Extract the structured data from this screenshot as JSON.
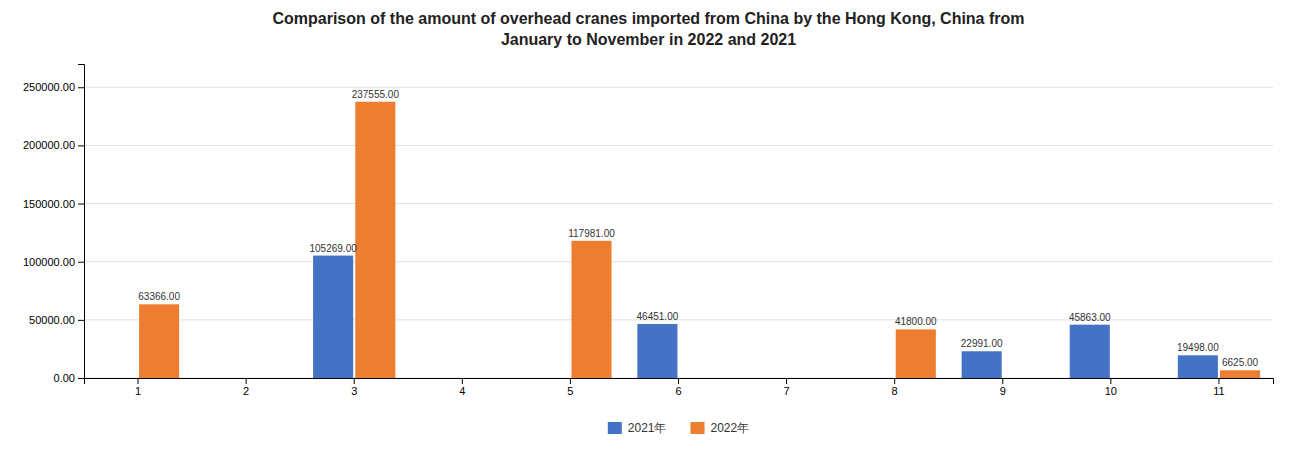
{
  "chart_data": {
    "type": "bar",
    "title": "Comparison of the amount of overhead cranes imported from China by the Hong Kong, China from\nJanuary to November in 2022 and 2021",
    "categories": [
      "1",
      "2",
      "3",
      "4",
      "5",
      "6",
      "7",
      "8",
      "9",
      "10",
      "11"
    ],
    "series": [
      {
        "name": "2021年",
        "color": "#4472C4",
        "values": [
          0,
          0,
          105269,
          0,
          0,
          46451,
          0,
          0,
          22991,
          45863,
          19498
        ],
        "value_labels": [
          null,
          null,
          "105269.00",
          null,
          null,
          "46451.00",
          null,
          null,
          "22991.00",
          "45863.00",
          "19498.00"
        ]
      },
      {
        "name": "2022年",
        "color": "#ED7D31",
        "values": [
          63366,
          0,
          237555,
          0,
          117981,
          0,
          0,
          41800,
          0,
          0,
          6625
        ],
        "value_labels": [
          "63366.00",
          null,
          "237555.00",
          null,
          "117981.00",
          null,
          null,
          "41800.00",
          null,
          null,
          "6625.00"
        ]
      }
    ],
    "ylim": [
      0,
      270000
    ],
    "yticks": [
      {
        "value": 0,
        "label": "0.00"
      },
      {
        "value": 50000,
        "label": "50000.00"
      },
      {
        "value": 100000,
        "label": "100000.00"
      },
      {
        "value": 150000,
        "label": "150000.00"
      },
      {
        "value": 200000,
        "label": "200000.00"
      },
      {
        "value": 250000,
        "label": "250000.00"
      }
    ],
    "grid": true,
    "legend": "bottom",
    "data_labels": true
  }
}
